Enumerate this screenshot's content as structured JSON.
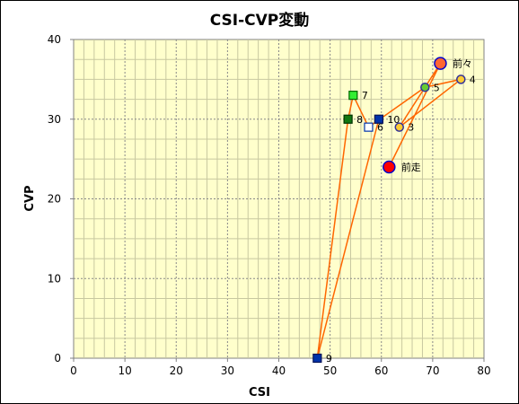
{
  "chart_data": {
    "type": "scatter",
    "title": "CSI-CVP変動",
    "xlabel": "CSI",
    "ylabel": "CVP",
    "xlim": [
      0,
      80
    ],
    "ylim": [
      0,
      40
    ],
    "x_ticks": [
      0,
      10,
      20,
      30,
      40,
      50,
      60,
      70,
      80
    ],
    "y_ticks": [
      0,
      10,
      20,
      30,
      40
    ],
    "grid": true,
    "points": [
      {
        "label": "前走",
        "x": 61.5,
        "y": 24.0,
        "marker": "circle",
        "fill": "#ff0000",
        "stroke": "#0000cc",
        "size": "large"
      },
      {
        "label": "前々",
        "x": 71.5,
        "y": 37.0,
        "marker": "circle",
        "fill": "#ff6633",
        "stroke": "#0000cc",
        "size": "large"
      },
      {
        "label": "3",
        "x": 63.5,
        "y": 29.0,
        "marker": "circle",
        "fill": "#ffcc33",
        "stroke": "#333399",
        "size": "small"
      },
      {
        "label": "4",
        "x": 75.5,
        "y": 35.0,
        "marker": "circle",
        "fill": "#ffcc33",
        "stroke": "#333399",
        "size": "small"
      },
      {
        "label": "5",
        "x": 68.5,
        "y": 34.0,
        "marker": "circle",
        "fill": "#66cc33",
        "stroke": "#333399",
        "size": "small"
      },
      {
        "label": "6",
        "x": 57.5,
        "y": 29.0,
        "marker": "square",
        "fill": "#ffffff",
        "stroke": "#0033aa",
        "size": "small"
      },
      {
        "label": "7",
        "x": 54.5,
        "y": 33.0,
        "marker": "square",
        "fill": "#33ee33",
        "stroke": "#006600",
        "size": "small"
      },
      {
        "label": "8",
        "x": 53.5,
        "y": 30.0,
        "marker": "square",
        "fill": "#117711",
        "stroke": "#003300",
        "size": "small"
      },
      {
        "label": "9",
        "x": 47.5,
        "y": 0.0,
        "marker": "square",
        "fill": "#0033aa",
        "stroke": "#001155",
        "size": "small"
      },
      {
        "label": "10",
        "x": 59.5,
        "y": 30.0,
        "marker": "square",
        "fill": "#0033aa",
        "stroke": "#001155",
        "size": "small"
      }
    ],
    "connection_order": [
      "前走",
      "前々",
      "3",
      "4",
      "5",
      "6",
      "7",
      "8",
      "9",
      "10"
    ],
    "colors": {
      "plot_background": "#ffffcc",
      "connector_line": "#ff6600",
      "major_grid": "#888888",
      "minor_grid": "#c8c8a0"
    }
  }
}
